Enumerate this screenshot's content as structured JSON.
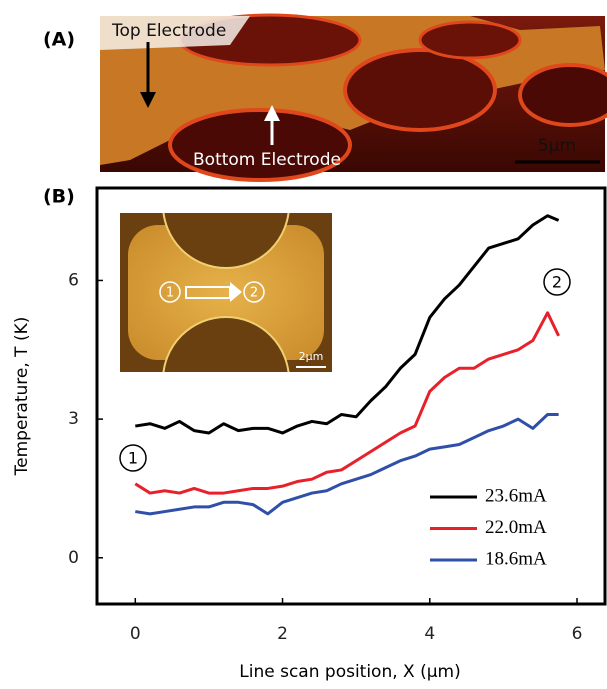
{
  "panel_a": {
    "label": "(A)",
    "top_label": "Top Electrode",
    "bottom_label": "Bottom Electrode",
    "scale_bar": "5µm"
  },
  "chart_data": {
    "type": "line",
    "panel_label": "(B)",
    "x_label": "Line scan position, X (µm)",
    "y_label": "Temperature, T (K)",
    "x": [
      0,
      0.2,
      0.4,
      0.6,
      0.8,
      1.0,
      1.2,
      1.4,
      1.6,
      1.8,
      2.0,
      2.2,
      2.4,
      2.6,
      2.8,
      3.0,
      3.2,
      3.4,
      3.6,
      3.8,
      4.0,
      4.2,
      4.4,
      4.6,
      4.8,
      5.0,
      5.2,
      5.4,
      5.6,
      5.75
    ],
    "series": [
      {
        "name": "23.6mA",
        "color": "#000000",
        "values": [
          2.85,
          2.9,
          2.8,
          2.95,
          2.75,
          2.7,
          2.9,
          2.75,
          2.8,
          2.8,
          2.7,
          2.85,
          2.95,
          2.9,
          3.1,
          3.05,
          3.4,
          3.7,
          4.1,
          4.4,
          5.2,
          5.6,
          5.9,
          6.3,
          6.7,
          6.8,
          6.9,
          7.2,
          7.4,
          7.3
        ]
      },
      {
        "name": "22.0mA",
        "color": "#e8202a",
        "values": [
          1.6,
          1.4,
          1.45,
          1.4,
          1.5,
          1.4,
          1.4,
          1.45,
          1.5,
          1.5,
          1.55,
          1.65,
          1.7,
          1.85,
          1.9,
          2.1,
          2.3,
          2.5,
          2.7,
          2.85,
          3.6,
          3.9,
          4.1,
          4.1,
          4.3,
          4.4,
          4.5,
          4.7,
          5.3,
          4.8
        ]
      },
      {
        "name": "18.6mA",
        "color": "#2f4fa8",
        "values": [
          1.0,
          0.95,
          1.0,
          1.05,
          1.1,
          1.1,
          1.2,
          1.2,
          1.15,
          0.95,
          1.2,
          1.3,
          1.4,
          1.45,
          1.6,
          1.7,
          1.8,
          1.95,
          2.1,
          2.2,
          2.35,
          2.4,
          2.45,
          2.6,
          2.75,
          2.85,
          3.0,
          2.8,
          3.1,
          3.1
        ]
      }
    ],
    "xlim": [
      -0.52,
      6.38
    ],
    "ylim": [
      -1,
      8
    ],
    "xticks": [
      0,
      2,
      4,
      6
    ],
    "yticks": [
      0,
      3,
      6
    ],
    "annotations": [
      "1",
      "2"
    ],
    "inset": {
      "scale_bar": "2µm",
      "markers": [
        "1",
        "2"
      ]
    }
  }
}
